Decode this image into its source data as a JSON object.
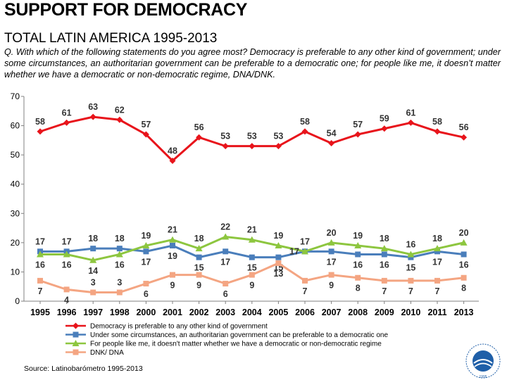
{
  "header": {
    "title": "SUPPORT FOR DEMOCRACY",
    "subtitle": "TOTAL LATIN AMERICA 1995-2013",
    "question": "Q. With which of the following statements do you agree most? Democracy is preferable to any other kind of government; under some circumstances, an authoritarian government can be preferable to a democratic one; for people like me, it doesn’t matter whether we have a democratic or non-democratic regime, DNA/DNK."
  },
  "footer": {
    "source": "Source: Latinobarómetro 1995-2013"
  },
  "logo": {
    "text": "LATINOBARÓMETRO",
    "years": "1995"
  },
  "chart_data": {
    "type": "line",
    "title": "SUPPORT FOR DEMOCRACY",
    "xlabel": "",
    "ylabel": "",
    "ylim": [
      0,
      70
    ],
    "yticks": [
      0,
      10,
      20,
      30,
      40,
      50,
      60,
      70
    ],
    "grid": false,
    "legend_position": "bottom",
    "categories": [
      "1995",
      "1996",
      "1997",
      "1998",
      "2000",
      "2001",
      "2002",
      "2003",
      "2004",
      "2005",
      "2006",
      "2007",
      "2008",
      "2009",
      "2010",
      "2011",
      "2013"
    ],
    "series": [
      {
        "name": "Democracy is preferable to any other kind of government",
        "color": "#e8141b",
        "marker": "diamond",
        "values": [
          58,
          61,
          63,
          62,
          57,
          48,
          56,
          53,
          53,
          53,
          58,
          54,
          57,
          59,
          61,
          58,
          56
        ],
        "label_pos": "above"
      },
      {
        "name": "Under some circumstances, an authoritarian government can be preferable to a democratic one",
        "color": "#4a7ebb",
        "marker": "square",
        "values": [
          17,
          17,
          18,
          18,
          17,
          19,
          15,
          17,
          15,
          15,
          17,
          17,
          16,
          16,
          15,
          17,
          16
        ],
        "label_pos": [
          -1,
          -1,
          -1,
          -1,
          1,
          1,
          1,
          1,
          1,
          1,
          -1,
          1,
          1,
          1,
          1,
          1,
          1
        ]
      },
      {
        "name": "For people like me, it doesn't matter whether we have a democratic or non-democratic regime",
        "color": "#8dc63f",
        "marker": "triangle",
        "values": [
          16,
          16,
          14,
          16,
          19,
          21,
          18,
          22,
          21,
          19,
          17,
          20,
          19,
          18,
          16,
          18,
          20
        ],
        "label_pos": [
          1,
          1,
          1,
          1,
          -1,
          -1,
          -1,
          -1,
          -1,
          -1,
          0,
          -1,
          -1,
          -1,
          -1,
          -1,
          -1
        ]
      },
      {
        "name": "DNK/ DNA",
        "color": "#f4a582",
        "marker": "square",
        "values": [
          7,
          4,
          3,
          3,
          6,
          9,
          9,
          6,
          9,
          13,
          7,
          9,
          8,
          7,
          7,
          7,
          8
        ],
        "label_pos": [
          1,
          1,
          -1,
          -1,
          1,
          1,
          1,
          1,
          1,
          1,
          1,
          1,
          1,
          1,
          1,
          1,
          1
        ]
      }
    ]
  }
}
